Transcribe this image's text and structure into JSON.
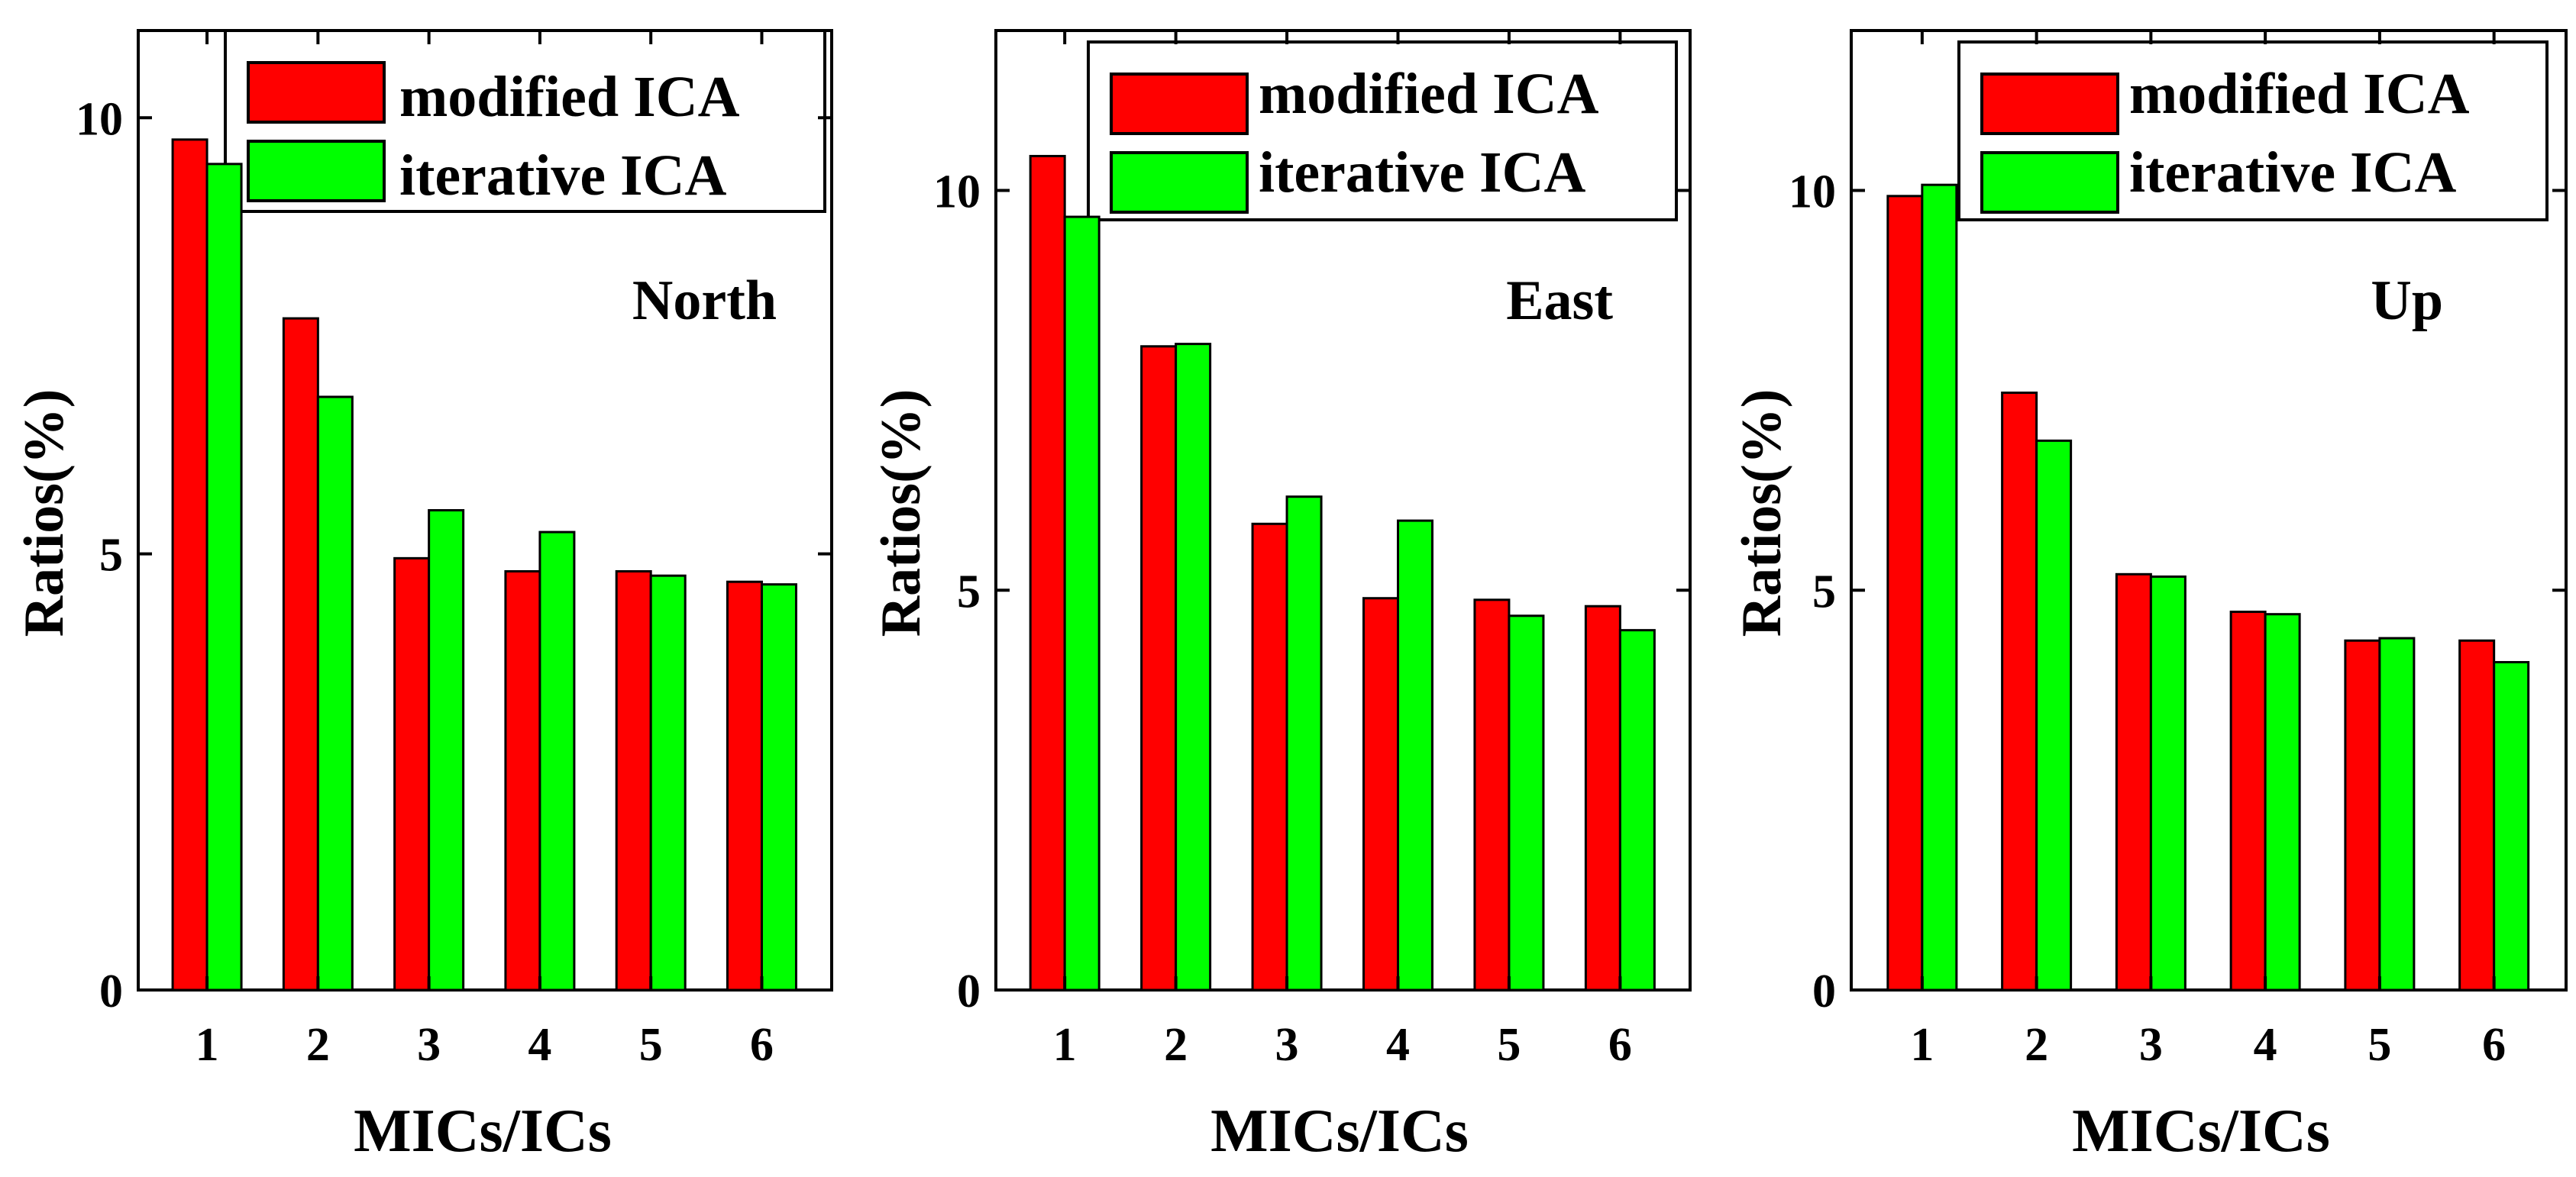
{
  "colors": {
    "modified": "#ff0000",
    "iterative": "#00ff00",
    "axis": "#000000",
    "background": "#ffffff"
  },
  "chart_data": [
    {
      "type": "bar",
      "panel_label": "North",
      "xlabel": "MICs/ICs",
      "ylabel": "Ratios(%)",
      "categories": [
        "1",
        "2",
        "3",
        "4",
        "5",
        "6"
      ],
      "ylim": [
        0,
        11
      ],
      "yticks": [
        0,
        5,
        10
      ],
      "ytick_labels": [
        "0",
        "5",
        "10"
      ],
      "legend": "top-right",
      "series": [
        {
          "name": "modified ICA",
          "color": "#ff0000",
          "values": [
            9.75,
            7.7,
            4.95,
            4.8,
            4.8,
            4.68
          ]
        },
        {
          "name": "iterative ICA",
          "color": "#00ff00",
          "values": [
            9.47,
            6.8,
            5.5,
            5.25,
            4.75,
            4.65
          ]
        }
      ]
    },
    {
      "type": "bar",
      "panel_label": "East",
      "xlabel": "MICs/ICs",
      "ylabel": "Ratios(%)",
      "categories": [
        "1",
        "2",
        "3",
        "4",
        "5",
        "6"
      ],
      "ylim": [
        0,
        12
      ],
      "yticks": [
        0,
        5,
        10
      ],
      "ytick_labels": [
        "0",
        "5",
        "10"
      ],
      "legend": "top-right",
      "series": [
        {
          "name": "modified ICA",
          "color": "#ff0000",
          "values": [
            10.43,
            8.05,
            5.83,
            4.9,
            4.88,
            4.8
          ]
        },
        {
          "name": "iterative ICA",
          "color": "#00ff00",
          "values": [
            9.67,
            8.08,
            6.17,
            5.87,
            4.68,
            4.5
          ]
        }
      ]
    },
    {
      "type": "bar",
      "panel_label": "Up",
      "xlabel": "MICs/ICs",
      "ylabel": "Ratios(%)",
      "categories": [
        "1",
        "2",
        "3",
        "4",
        "5",
        "6"
      ],
      "ylim": [
        0,
        12
      ],
      "yticks": [
        0,
        5,
        10
      ],
      "ytick_labels": [
        "0",
        "5",
        "10"
      ],
      "legend": "top-right",
      "series": [
        {
          "name": "modified ICA",
          "color": "#ff0000",
          "values": [
            9.93,
            7.47,
            5.2,
            4.73,
            4.37,
            4.37
          ]
        },
        {
          "name": "iterative ICA",
          "color": "#00ff00",
          "values": [
            10.07,
            6.87,
            5.17,
            4.7,
            4.4,
            4.1
          ]
        }
      ]
    }
  ]
}
